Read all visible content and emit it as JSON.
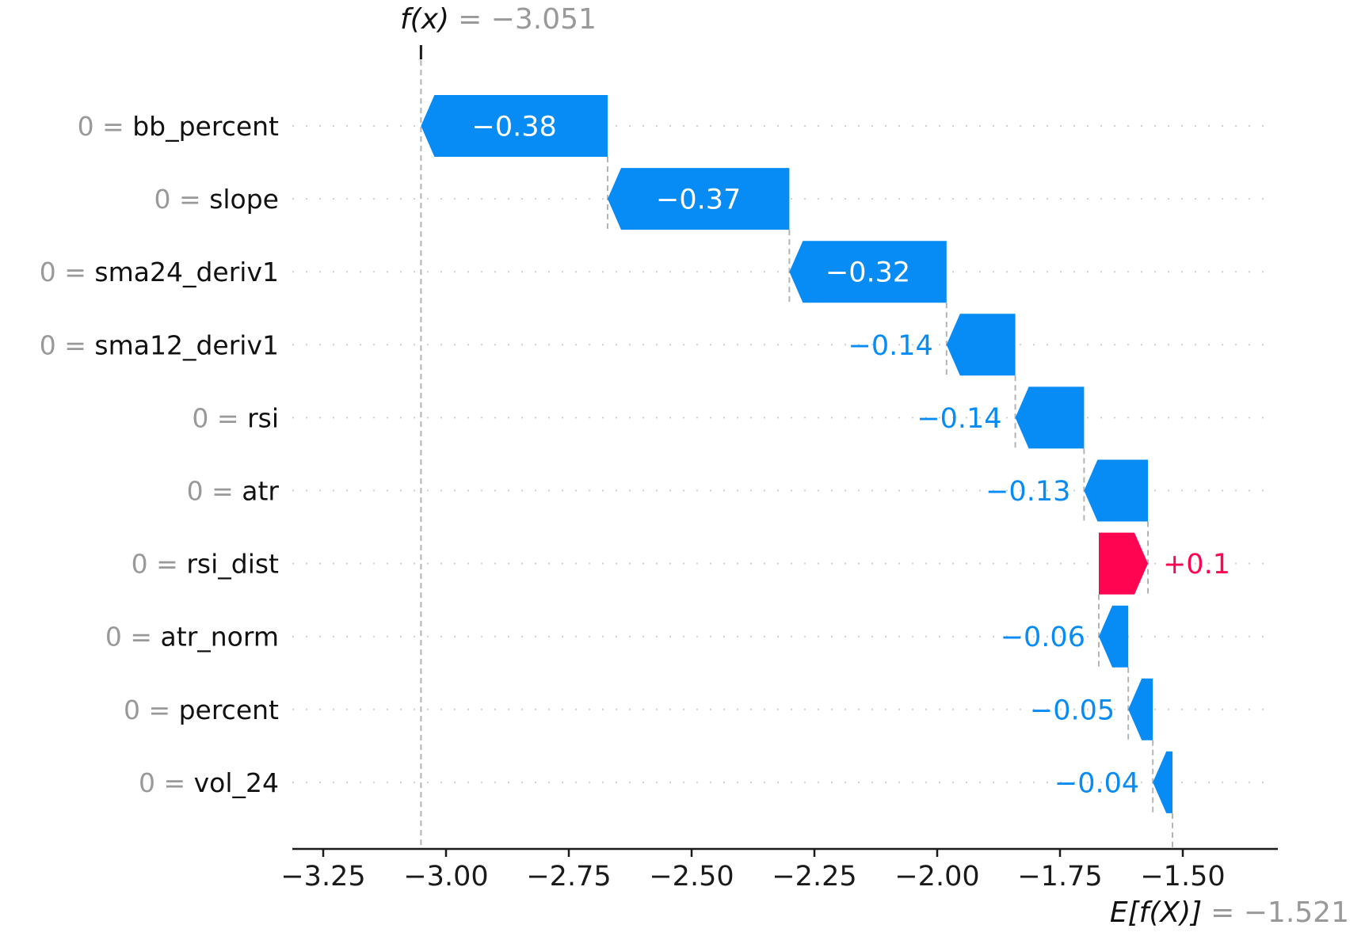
{
  "labels": {
    "fx_name": "f(x)",
    "fx_eq": "= −3.051",
    "ef_name": "E[f(X)]",
    "ef_eq": "= −1.521"
  },
  "colors": {
    "negative": "#078bf5",
    "positive": "#ff0451",
    "bar_text_inside": "#ffffff",
    "feature_value_gray": "#999999",
    "feature_name_black": "#111111",
    "tick_text": "#1a1a1a",
    "axis_line": "#1a1a1a",
    "dashed_line": "#b4b4b4",
    "dotted_line": "#cfcfcf"
  },
  "chart_data": {
    "type": "bar",
    "subtype": "shap-waterfall",
    "title": "",
    "xlabel": "",
    "ylabel": "",
    "fx": -3.051,
    "fx_label": "f(x) = −3.051",
    "base_value": -1.521,
    "base_label": "E[f(X)] = −1.521",
    "legend": "none",
    "grid": "dotted-rows",
    "xlim": [
      -3.313,
      -1.306
    ],
    "features": [
      {
        "name": "bb_percent",
        "feature_value": "0",
        "shap": -0.38,
        "display": "−0.38"
      },
      {
        "name": "slope",
        "feature_value": "0",
        "shap": -0.37,
        "display": "−0.37"
      },
      {
        "name": "sma24_deriv1",
        "feature_value": "0",
        "shap": -0.32,
        "display": "−0.32"
      },
      {
        "name": "sma12_deriv1",
        "feature_value": "0",
        "shap": -0.14,
        "display": "−0.14"
      },
      {
        "name": "rsi",
        "feature_value": "0",
        "shap": -0.14,
        "display": "−0.14"
      },
      {
        "name": "atr",
        "feature_value": "0",
        "shap": -0.13,
        "display": "−0.13"
      },
      {
        "name": "rsi_dist",
        "feature_value": "0",
        "shap": 0.1,
        "display": "+0.1"
      },
      {
        "name": "atr_norm",
        "feature_value": "0",
        "shap": -0.06,
        "display": "−0.06"
      },
      {
        "name": "percent",
        "feature_value": "0",
        "shap": -0.05,
        "display": "−0.05"
      },
      {
        "name": "vol_24",
        "feature_value": "0",
        "shap": -0.04,
        "display": "−0.04"
      }
    ],
    "x_axis_ticks": [
      {
        "v": -3.25,
        "label": "−3.25"
      },
      {
        "v": -3.0,
        "label": "−3.00"
      },
      {
        "v": -2.75,
        "label": "−2.75"
      },
      {
        "v": -2.5,
        "label": "−2.50"
      },
      {
        "v": -2.25,
        "label": "−2.25"
      },
      {
        "v": -2.0,
        "label": "−2.00"
      },
      {
        "v": -1.75,
        "label": "−1.75"
      },
      {
        "v": -1.5,
        "label": "−1.50"
      }
    ]
  }
}
